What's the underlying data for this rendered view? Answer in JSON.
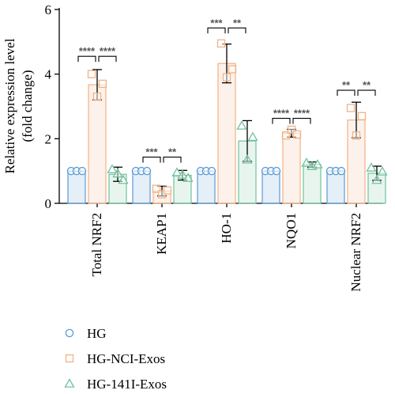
{
  "chart_data": {
    "type": "bar",
    "ylabel_lines": [
      "Relative expression level",
      "(fold change)"
    ],
    "ylim": [
      0,
      6
    ],
    "yticks": [
      0,
      2,
      4,
      6
    ],
    "categories": [
      "Total NRF2",
      "KEAP1",
      "HO-1",
      "NQO1",
      "Nuclear NRF2"
    ],
    "series": [
      {
        "name": "HG",
        "color": "#5b9bd5",
        "marker": "circle",
        "values": [
          1.0,
          1.0,
          1.0,
          1.0,
          1.0
        ],
        "errors": [
          0.0,
          0.0,
          0.0,
          0.0,
          0.0
        ],
        "points": [
          [
            1.0,
            1.0,
            1.0
          ],
          [
            1.0,
            1.0,
            1.0
          ],
          [
            1.0,
            1.0,
            1.0
          ],
          [
            1.0,
            1.0,
            1.0
          ],
          [
            1.0,
            1.0,
            1.0
          ]
        ]
      },
      {
        "name": "HG-NCI-Exos",
        "color": "#f4b183",
        "marker": "square",
        "values": [
          3.67,
          0.38,
          4.33,
          2.17,
          2.58
        ],
        "errors": [
          0.47,
          0.15,
          0.6,
          0.12,
          0.55
        ],
        "points": [
          [
            4.0,
            3.3,
            3.7
          ],
          [
            0.45,
            0.28,
            0.4
          ],
          [
            4.95,
            3.9,
            4.15
          ],
          [
            2.1,
            2.28,
            2.13
          ],
          [
            2.95,
            2.1,
            2.7
          ]
        ]
      },
      {
        "name": "HG-141I-Exos",
        "color": "#70c29c",
        "marker": "triangle",
        "values": [
          0.9,
          0.87,
          1.93,
          1.2,
          0.93
        ],
        "errors": [
          0.22,
          0.15,
          0.63,
          0.08,
          0.22
        ],
        "points": [
          [
            1.05,
            0.92,
            0.72
          ],
          [
            0.95,
            0.88,
            0.78
          ],
          [
            2.4,
            1.35,
            2.05
          ],
          [
            1.25,
            1.15,
            1.2
          ],
          [
            1.1,
            0.72,
            0.98
          ]
        ]
      }
    ],
    "significance": [
      {
        "category": 0,
        "from": 0,
        "to": 1,
        "label": "****",
        "y": 4.55
      },
      {
        "category": 0,
        "from": 1,
        "to": 2,
        "label": "****",
        "y": 4.55
      },
      {
        "category": 1,
        "from": 0,
        "to": 1,
        "label": "***",
        "y": 1.43
      },
      {
        "category": 1,
        "from": 1,
        "to": 2,
        "label": "**",
        "y": 1.43
      },
      {
        "category": 2,
        "from": 0,
        "to": 1,
        "label": "***",
        "y": 5.43
      },
      {
        "category": 2,
        "from": 1,
        "to": 2,
        "label": "**",
        "y": 5.43
      },
      {
        "category": 3,
        "from": 0,
        "to": 1,
        "label": "****",
        "y": 2.63
      },
      {
        "category": 3,
        "from": 1,
        "to": 2,
        "label": "****",
        "y": 2.63
      },
      {
        "category": 4,
        "from": 0,
        "to": 1,
        "label": "**",
        "y": 3.5
      },
      {
        "category": 4,
        "from": 1,
        "to": 2,
        "label": "**",
        "y": 3.5
      }
    ],
    "legend_position": "bottom-left"
  }
}
